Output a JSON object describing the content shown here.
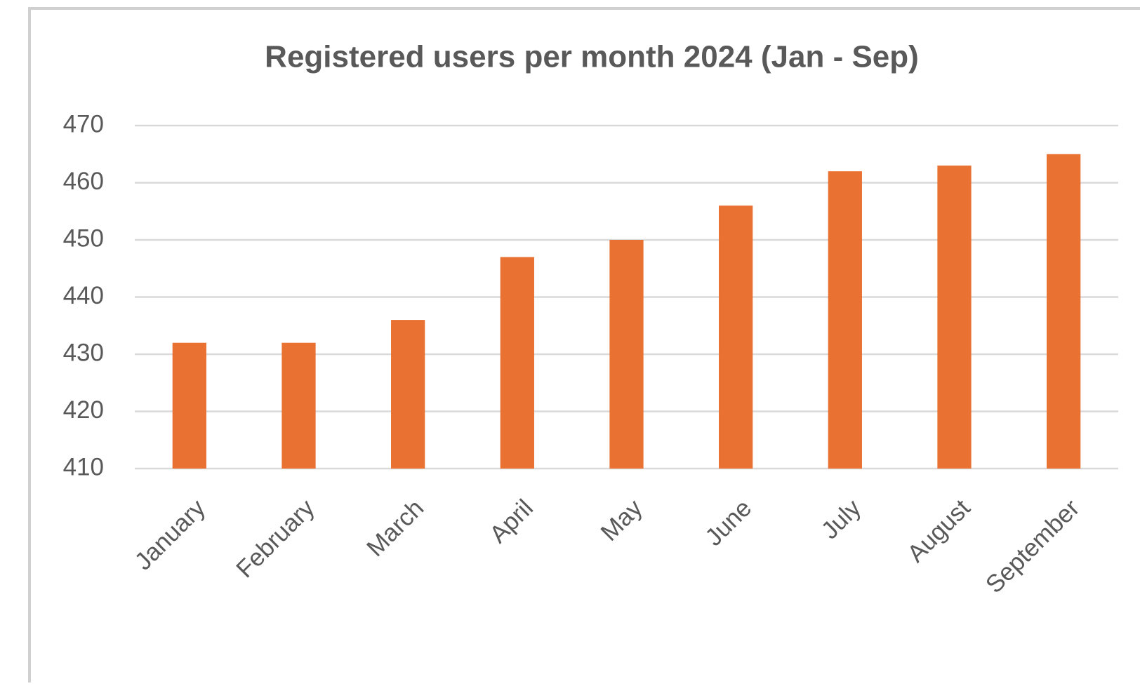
{
  "chart_data": {
    "type": "bar",
    "title": "Registered users per month 2024 (Jan - Sep)",
    "categories": [
      "January",
      "February",
      "March",
      "April",
      "May",
      "June",
      "July",
      "August",
      "September"
    ],
    "values": [
      432,
      432,
      436,
      447,
      450,
      456,
      462,
      463,
      465
    ],
    "color": "#e97132",
    "ylim": [
      410,
      470
    ],
    "yticks": [
      410,
      420,
      430,
      440,
      450,
      460,
      470
    ],
    "grid": true
  }
}
